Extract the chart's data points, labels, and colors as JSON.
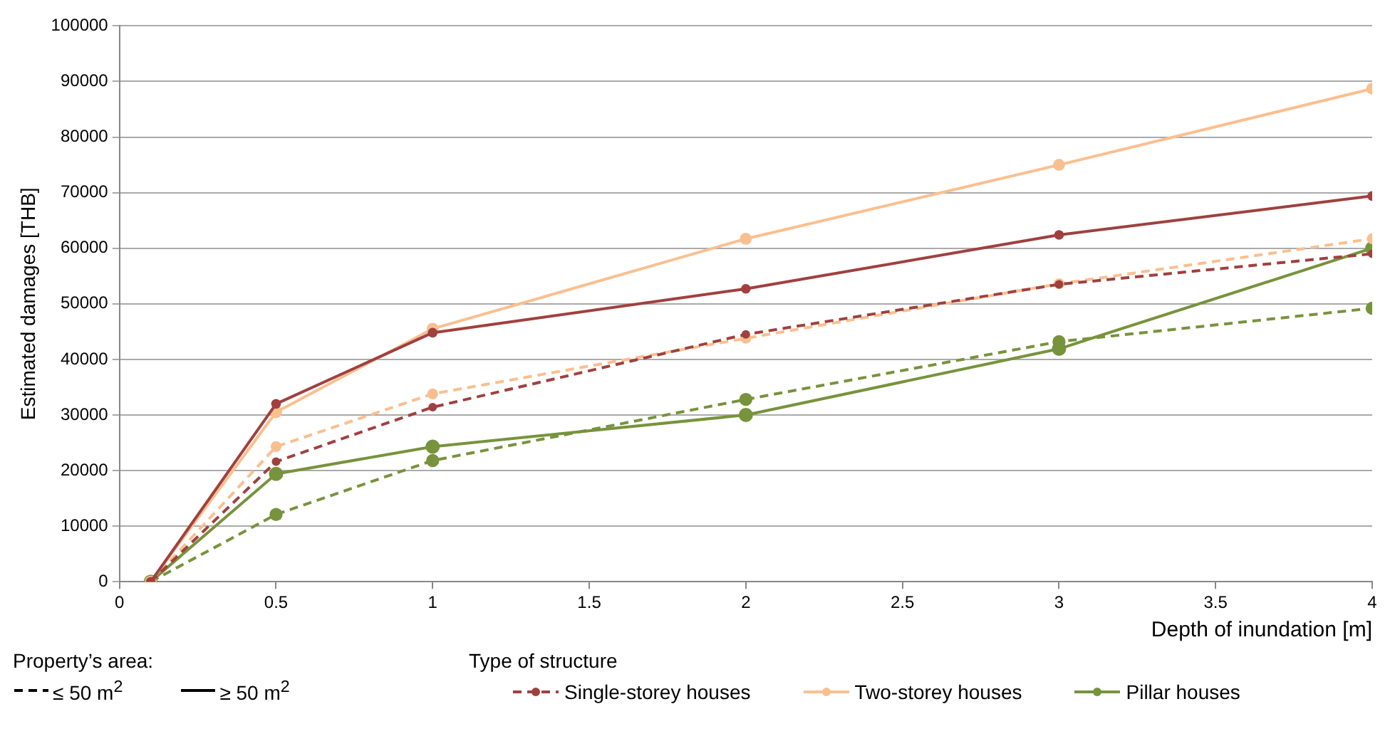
{
  "chart_data": {
    "type": "line",
    "xlabel": "Depth of inundation [m]",
    "ylabel": "Estimated damages [THB]",
    "legend_title": "Type of structure",
    "x": [
      0.1,
      0.5,
      1,
      2,
      3,
      4
    ],
    "xlim": [
      0,
      4
    ],
    "xticks": [
      0,
      0.5,
      1,
      1.5,
      2,
      2.5,
      3,
      3.5,
      4
    ],
    "ylim": [
      0,
      100000
    ],
    "yticks": [
      0,
      10000,
      20000,
      30000,
      40000,
      50000,
      60000,
      70000,
      80000,
      90000,
      100000
    ],
    "grid": "y",
    "legend": "bottom",
    "marker": "circle",
    "annotations": [
      "Property’s area:",
      "≤ 50 m$^{2}$",
      "≥ 50 m$^{2}$"
    ],
    "series": [
      {
        "name": "Single-storey houses",
        "color": "#a0403f",
        "line_style": "dashed",
        "values": [
          0,
          21600,
          31400,
          44500,
          53500,
          59000
        ]
      },
      {
        "color": "#a0403f",
        "line_style": "solid",
        "values": [
          0,
          32000,
          44800,
          52700,
          62400,
          69400
        ]
      },
      {
        "color": "#fabf8f",
        "line_style": "dashed",
        "values": [
          0,
          24300,
          33800,
          43800,
          53600,
          61700
        ]
      },
      {
        "name": "Two-storey houses",
        "color": "#fabf8f",
        "line_style": "solid",
        "values": [
          0,
          30500,
          45500,
          61700,
          75000,
          88700
        ]
      },
      {
        "color": "#77933c",
        "line_style": "dashed",
        "values": [
          0,
          12100,
          21800,
          32800,
          43200,
          49200
        ]
      },
      {
        "name": "Pillar houses",
        "color": "#77933c",
        "line_style": "solid",
        "values": [
          0,
          19400,
          24300,
          30000,
          41900,
          60000
        ]
      }
    ]
  }
}
